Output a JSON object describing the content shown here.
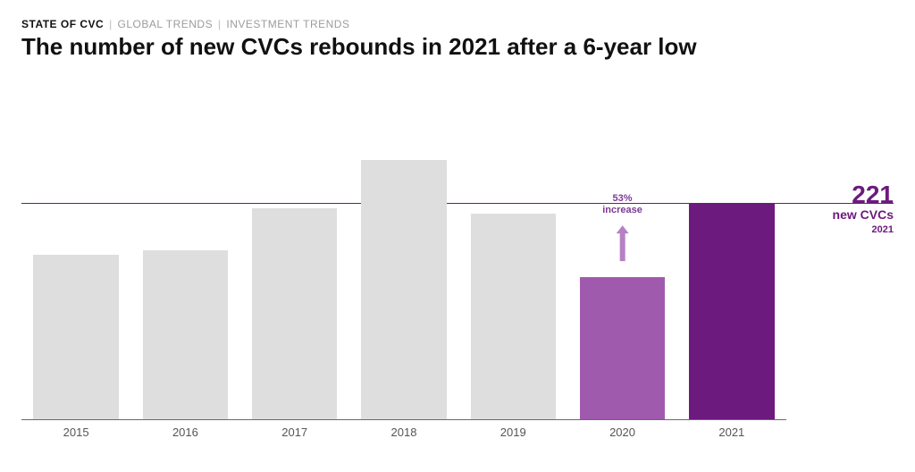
{
  "breadcrumb": {
    "a": "STATE OF CVC",
    "b": "GLOBAL TRENDS",
    "c": "INVESTMENT TRENDS"
  },
  "title": "The number of new CVCs rebounds in 2021 after a 6-year low",
  "chart": {
    "type": "bar",
    "categories": [
      "2015",
      "2016",
      "2017",
      "2018",
      "2019",
      "2020",
      "2021"
    ],
    "values": [
      168,
      172,
      215,
      264,
      210,
      145,
      221
    ],
    "bar_colors": [
      "#dedede",
      "#dedede",
      "#dedede",
      "#dedede",
      "#dedede",
      "#a05aad",
      "#6c1a7d"
    ],
    "ylim_max": 300,
    "axis_color": "#6a6a6a",
    "background_color": "#ffffff",
    "bar_width_pct": 78,
    "reference_line": {
      "value": 221,
      "color": "#6c1a7d"
    },
    "x_tick_fontsize": 13,
    "x_tick_color": "#555555"
  },
  "callout": {
    "big": "221",
    "mid": "new CVCs",
    "year": "2021",
    "color": "#6c1a7d"
  },
  "annotation": {
    "over_category": "2020",
    "text_line1": "53%",
    "text_line2": "increase",
    "arrow_color": "#b581c4",
    "text_color": "#7b3a94"
  }
}
